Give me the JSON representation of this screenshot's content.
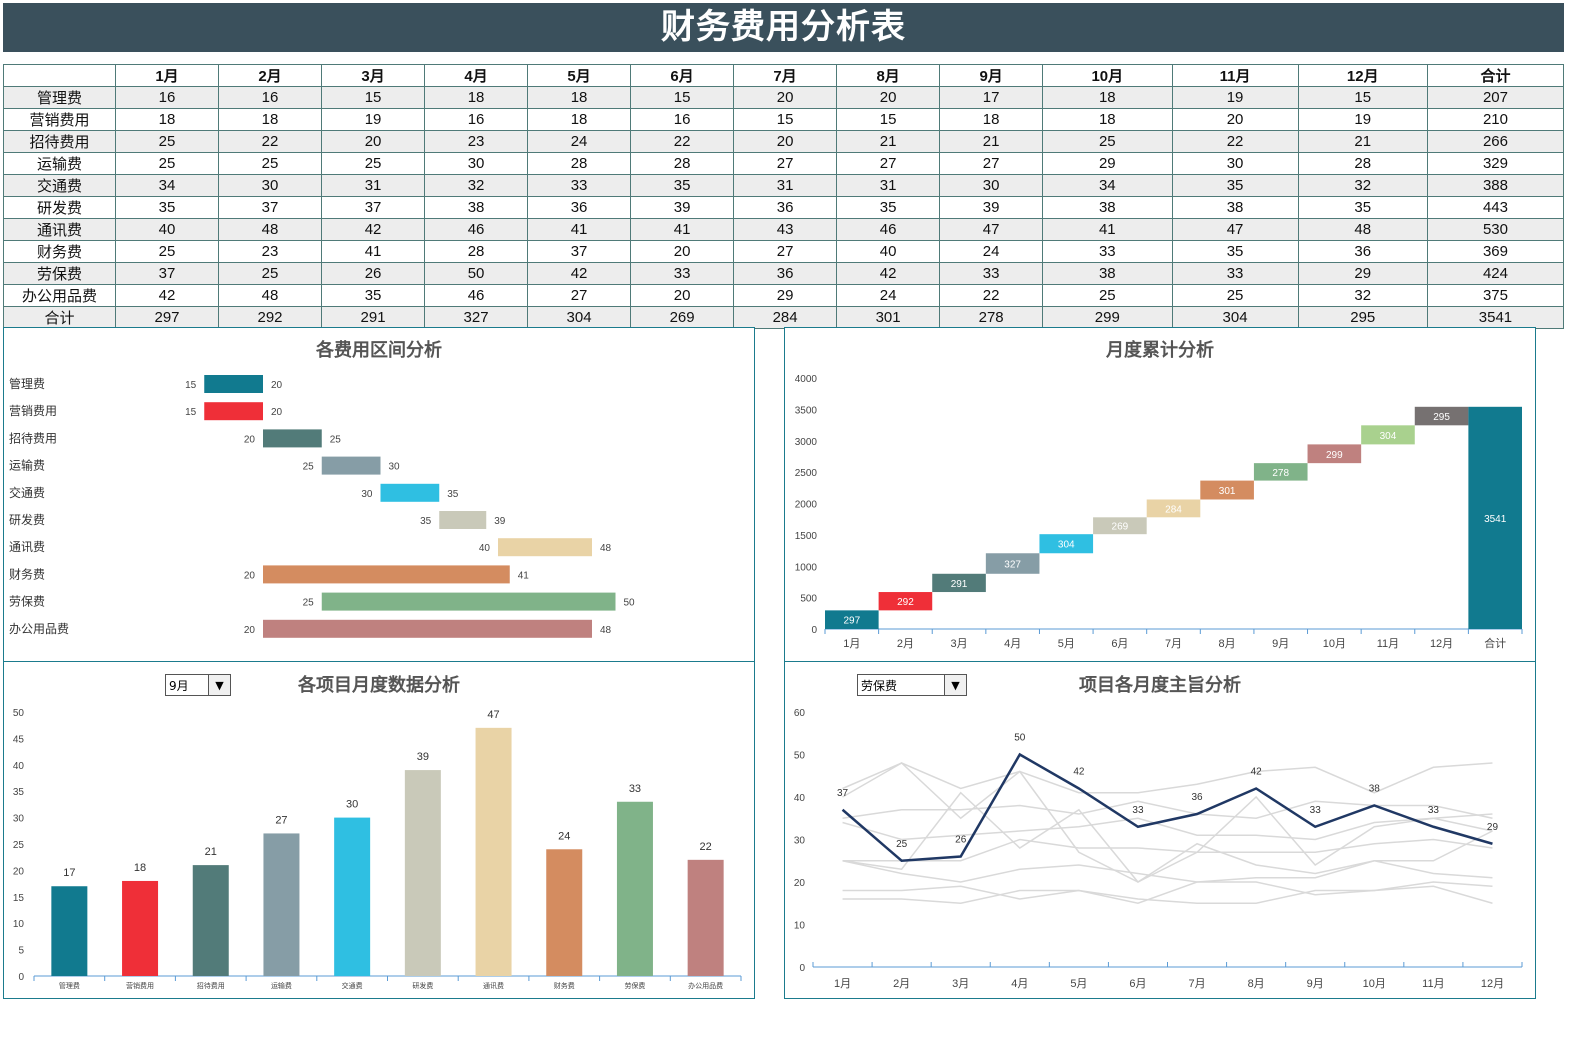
{
  "title": "财务费用分析表",
  "table": {
    "headers": [
      "",
      "1月",
      "2月",
      "3月",
      "4月",
      "5月",
      "6月",
      "7月",
      "8月",
      "9月",
      "10月",
      "11月",
      "12月",
      "合计"
    ],
    "rows": [
      {
        "label": "管理费",
        "values": [
          16,
          16,
          15,
          18,
          18,
          15,
          20,
          20,
          17,
          18,
          19,
          15,
          207
        ]
      },
      {
        "label": "营销费用",
        "values": [
          18,
          18,
          19,
          16,
          18,
          16,
          15,
          15,
          18,
          18,
          20,
          19,
          210
        ]
      },
      {
        "label": "招待费用",
        "values": [
          25,
          22,
          20,
          23,
          24,
          22,
          20,
          21,
          21,
          25,
          22,
          21,
          266
        ]
      },
      {
        "label": "运输费",
        "values": [
          25,
          25,
          25,
          30,
          28,
          28,
          27,
          27,
          27,
          29,
          30,
          28,
          329
        ]
      },
      {
        "label": "交通费",
        "values": [
          34,
          30,
          31,
          32,
          33,
          35,
          31,
          31,
          30,
          34,
          35,
          32,
          388
        ]
      },
      {
        "label": "研发费",
        "values": [
          35,
          37,
          37,
          38,
          36,
          39,
          36,
          35,
          39,
          38,
          38,
          35,
          443
        ]
      },
      {
        "label": "通讯费",
        "values": [
          40,
          48,
          42,
          46,
          41,
          41,
          43,
          46,
          47,
          41,
          47,
          48,
          530
        ]
      },
      {
        "label": "财务费",
        "values": [
          25,
          23,
          41,
          28,
          37,
          20,
          27,
          40,
          24,
          33,
          35,
          36,
          369
        ]
      },
      {
        "label": "劳保费",
        "values": [
          37,
          25,
          26,
          50,
          42,
          33,
          36,
          42,
          33,
          38,
          33,
          29,
          424
        ]
      },
      {
        "label": "办公用品费",
        "values": [
          42,
          48,
          35,
          46,
          27,
          20,
          29,
          24,
          22,
          25,
          25,
          32,
          375
        ]
      },
      {
        "label": "合计",
        "values": [
          297,
          292,
          291,
          327,
          304,
          269,
          284,
          301,
          278,
          299,
          304,
          295,
          3541
        ]
      }
    ]
  },
  "colors": {
    "categories": [
      "#117a8f",
      "#ef2f38",
      "#527b79",
      "#869da6",
      "#2fbfe2",
      "#c9c9b9",
      "#e9d3a6",
      "#d48c60",
      "#80b389",
      "#bf817f"
    ],
    "waterfall": [
      "#117a8f",
      "#ef2f38",
      "#527b79",
      "#869da6",
      "#2fbfe2",
      "#c9c9b9",
      "#e9d3a6",
      "#d48c60",
      "#80b389",
      "#bf817f",
      "#a9d18e",
      "#767171",
      "#117a8f"
    ],
    "highlight_line": "#203864",
    "background_line": "#d9d9d9",
    "banner": "#3a505c",
    "panel_border": "#1b7b8d"
  },
  "chart_data": [
    {
      "type": "bar",
      "subtype": "floating-range",
      "title": "各费用区间分析",
      "categories": [
        "管理费",
        "营销费用",
        "招待费用",
        "运输费",
        "交通费",
        "研发费",
        "通讯费",
        "财务费",
        "劳保费",
        "办公用品费"
      ],
      "min": [
        15,
        15,
        20,
        25,
        30,
        35,
        40,
        20,
        25,
        20
      ],
      "max": [
        20,
        20,
        25,
        30,
        35,
        39,
        48,
        41,
        50,
        48
      ],
      "xlim": [
        0,
        55
      ],
      "grid": false,
      "legend": "none"
    },
    {
      "type": "bar",
      "subtype": "waterfall",
      "title": "月度累计分析",
      "categories": [
        "1月",
        "2月",
        "3月",
        "4月",
        "5月",
        "6月",
        "7月",
        "8月",
        "9月",
        "10月",
        "11月",
        "12月",
        "合计"
      ],
      "values": [
        297,
        292,
        291,
        327,
        304,
        269,
        284,
        301,
        278,
        299,
        304,
        295,
        3541
      ],
      "yticks": [
        0,
        500,
        1000,
        1500,
        2000,
        2500,
        3000,
        3500,
        4000
      ],
      "ylim": [
        0,
        4000
      ],
      "grid": false,
      "legend": "none"
    },
    {
      "type": "bar",
      "title": "各项目月度数据分析",
      "selected_month": "9月",
      "categories": [
        "管理费",
        "营销费用",
        "招待费用",
        "运输费",
        "交通费",
        "研发费",
        "通讯费",
        "财务费",
        "劳保费",
        "办公用品费"
      ],
      "values": [
        17,
        18,
        21,
        27,
        30,
        39,
        47,
        24,
        33,
        22
      ],
      "yticks": [
        0,
        5,
        10,
        15,
        20,
        25,
        30,
        35,
        40,
        45,
        50
      ],
      "ylim": [
        0,
        50
      ],
      "grid": false,
      "legend": "none"
    },
    {
      "type": "line",
      "title": "项目各月度主旨分析",
      "selected_item": "劳保费",
      "x": [
        "1月",
        "2月",
        "3月",
        "4月",
        "5月",
        "6月",
        "7月",
        "8月",
        "9月",
        "10月",
        "11月",
        "12月"
      ],
      "highlight_series": {
        "name": "劳保费",
        "values": [
          37,
          25,
          26,
          50,
          42,
          33,
          36,
          42,
          33,
          38,
          33,
          29
        ]
      },
      "background_series": [
        {
          "name": "管理费",
          "values": [
            16,
            16,
            15,
            18,
            18,
            15,
            20,
            20,
            17,
            18,
            19,
            15
          ]
        },
        {
          "name": "营销费用",
          "values": [
            18,
            18,
            19,
            16,
            18,
            16,
            15,
            15,
            18,
            18,
            20,
            19
          ]
        },
        {
          "name": "招待费用",
          "values": [
            25,
            22,
            20,
            23,
            24,
            22,
            20,
            21,
            21,
            25,
            22,
            21
          ]
        },
        {
          "name": "运输费",
          "values": [
            25,
            25,
            25,
            30,
            28,
            28,
            27,
            27,
            27,
            29,
            30,
            28
          ]
        },
        {
          "name": "交通费",
          "values": [
            34,
            30,
            31,
            32,
            33,
            35,
            31,
            31,
            30,
            34,
            35,
            32
          ]
        },
        {
          "name": "研发费",
          "values": [
            35,
            37,
            37,
            38,
            36,
            39,
            36,
            35,
            39,
            38,
            38,
            35
          ]
        },
        {
          "name": "通讯费",
          "values": [
            40,
            48,
            42,
            46,
            41,
            41,
            43,
            46,
            47,
            41,
            47,
            48
          ]
        },
        {
          "name": "财务费",
          "values": [
            25,
            23,
            41,
            28,
            37,
            20,
            27,
            40,
            24,
            33,
            35,
            36
          ]
        },
        {
          "name": "办公用品费",
          "values": [
            42,
            48,
            35,
            46,
            27,
            20,
            29,
            24,
            22,
            25,
            25,
            32
          ]
        }
      ],
      "yticks": [
        0,
        10,
        20,
        30,
        40,
        50,
        60
      ],
      "ylim": [
        0,
        60
      ],
      "grid": false,
      "legend": "none"
    }
  ]
}
